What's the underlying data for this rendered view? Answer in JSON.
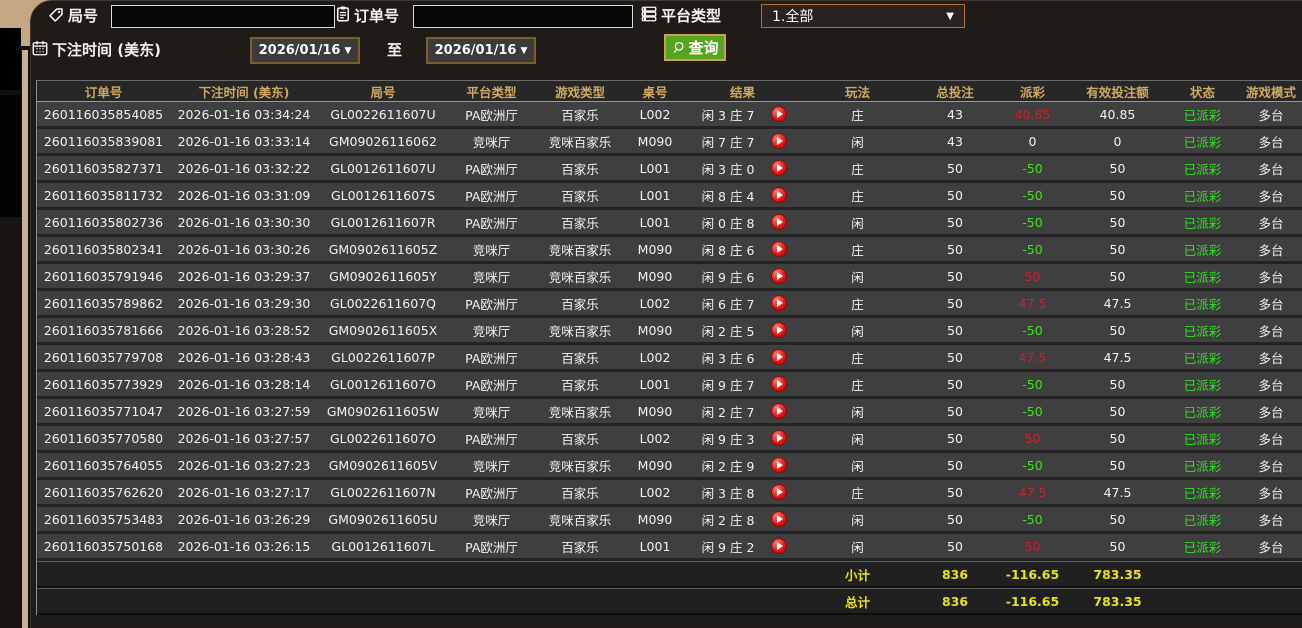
{
  "filters": {
    "game_no_label": "局号",
    "order_no_label": "订单号",
    "platform_label": "平台类型",
    "platform_value": "1.全部",
    "bet_time_label": "下注时间 (美东)",
    "date_from": "2026/01/16",
    "date_to": "2026/01/16",
    "to_label": "至",
    "query_label": "查询",
    "dropdown_arrow": "▼",
    "game_no_value": "",
    "order_no_value": ""
  },
  "icons": [
    "tag-icon",
    "clipboard-icon",
    "platform-list-icon",
    "calendar-icon",
    "search-icon",
    "replay-play-icon",
    "dropdown-arrow-icon"
  ],
  "colors": {
    "header_gold": "#cfa95f",
    "win_red": "#c82133",
    "lose_green": "#3fe41c",
    "status_green": "#2fe51f",
    "footer_yellow": "#eae313",
    "query_button_green": "#55a41e",
    "select_border_orange": "#b5722b",
    "date_border_brown": "#7d5c2d",
    "row_bg": "#3f3f3f",
    "panel_bg": "#1e1b18",
    "left_stripe_tan": "#c9b092"
  },
  "table": {
    "headers": [
      "订单号",
      "下注时间 (美东)",
      "局号",
      "平台类型",
      "游戏类型",
      "桌号",
      "结果",
      "玩法",
      "总投注",
      "派彩",
      "有效投注额",
      "状态",
      "游戏模式"
    ],
    "rows": [
      {
        "order": "260116035854085",
        "time": "2026-01-16 03:34:24",
        "game_no": "GL0022611607U",
        "platform": "PA欧洲厅",
        "game_type": "百家乐",
        "table_no": "L002",
        "result": "闲 3 庄 7",
        "play": "庄",
        "total_bet": "43",
        "payout": "40.85",
        "payout_color": "red",
        "valid_bet": "40.85",
        "status": "已派彩",
        "mode": "多台"
      },
      {
        "order": "260116035839081",
        "time": "2026-01-16 03:33:14",
        "game_no": "GM09026116062",
        "platform": "竞咪厅",
        "game_type": "竞咪百家乐",
        "table_no": "M090",
        "result": "闲 7 庄 7",
        "play": "闲",
        "total_bet": "43",
        "payout": "0",
        "payout_color": "white",
        "valid_bet": "0",
        "status": "已派彩",
        "mode": "多台"
      },
      {
        "order": "260116035827371",
        "time": "2026-01-16 03:32:22",
        "game_no": "GL0012611607U",
        "platform": "PA欧洲厅",
        "game_type": "百家乐",
        "table_no": "L001",
        "result": "闲 3 庄 0",
        "play": "庄",
        "total_bet": "50",
        "payout": "-50",
        "payout_color": "green",
        "valid_bet": "50",
        "status": "已派彩",
        "mode": "多台"
      },
      {
        "order": "260116035811732",
        "time": "2026-01-16 03:31:09",
        "game_no": "GL0012611607S",
        "platform": "PA欧洲厅",
        "game_type": "百家乐",
        "table_no": "L001",
        "result": "闲 8 庄 4",
        "play": "庄",
        "total_bet": "50",
        "payout": "-50",
        "payout_color": "green",
        "valid_bet": "50",
        "status": "已派彩",
        "mode": "多台"
      },
      {
        "order": "260116035802736",
        "time": "2026-01-16 03:30:30",
        "game_no": "GL0012611607R",
        "platform": "PA欧洲厅",
        "game_type": "百家乐",
        "table_no": "L001",
        "result": "闲 0 庄 8",
        "play": "闲",
        "total_bet": "50",
        "payout": "-50",
        "payout_color": "green",
        "valid_bet": "50",
        "status": "已派彩",
        "mode": "多台"
      },
      {
        "order": "260116035802341",
        "time": "2026-01-16 03:30:26",
        "game_no": "GM0902611605Z",
        "platform": "竞咪厅",
        "game_type": "竞咪百家乐",
        "table_no": "M090",
        "result": "闲 8 庄 6",
        "play": "庄",
        "total_bet": "50",
        "payout": "-50",
        "payout_color": "green",
        "valid_bet": "50",
        "status": "已派彩",
        "mode": "多台"
      },
      {
        "order": "260116035791946",
        "time": "2026-01-16 03:29:37",
        "game_no": "GM0902611605Y",
        "platform": "竞咪厅",
        "game_type": "竞咪百家乐",
        "table_no": "M090",
        "result": "闲 9 庄 6",
        "play": "闲",
        "total_bet": "50",
        "payout": "50",
        "payout_color": "red",
        "valid_bet": "50",
        "status": "已派彩",
        "mode": "多台"
      },
      {
        "order": "260116035789862",
        "time": "2026-01-16 03:29:30",
        "game_no": "GL0022611607Q",
        "platform": "PA欧洲厅",
        "game_type": "百家乐",
        "table_no": "L002",
        "result": "闲 6 庄 7",
        "play": "庄",
        "total_bet": "50",
        "payout": "47.5",
        "payout_color": "red",
        "valid_bet": "47.5",
        "status": "已派彩",
        "mode": "多台"
      },
      {
        "order": "260116035781666",
        "time": "2026-01-16 03:28:52",
        "game_no": "GM0902611605X",
        "platform": "竞咪厅",
        "game_type": "竞咪百家乐",
        "table_no": "M090",
        "result": "闲 2 庄 5",
        "play": "闲",
        "total_bet": "50",
        "payout": "-50",
        "payout_color": "green",
        "valid_bet": "50",
        "status": "已派彩",
        "mode": "多台"
      },
      {
        "order": "260116035779708",
        "time": "2026-01-16 03:28:43",
        "game_no": "GL0022611607P",
        "platform": "PA欧洲厅",
        "game_type": "百家乐",
        "table_no": "L002",
        "result": "闲 3 庄 6",
        "play": "庄",
        "total_bet": "50",
        "payout": "47.5",
        "payout_color": "red",
        "valid_bet": "47.5",
        "status": "已派彩",
        "mode": "多台"
      },
      {
        "order": "260116035773929",
        "time": "2026-01-16 03:28:14",
        "game_no": "GL0012611607O",
        "platform": "PA欧洲厅",
        "game_type": "百家乐",
        "table_no": "L001",
        "result": "闲 9 庄 7",
        "play": "庄",
        "total_bet": "50",
        "payout": "-50",
        "payout_color": "green",
        "valid_bet": "50",
        "status": "已派彩",
        "mode": "多台"
      },
      {
        "order": "260116035771047",
        "time": "2026-01-16 03:27:59",
        "game_no": "GM0902611605W",
        "platform": "竞咪厅",
        "game_type": "竞咪百家乐",
        "table_no": "M090",
        "result": "闲 2 庄 7",
        "play": "闲",
        "total_bet": "50",
        "payout": "-50",
        "payout_color": "green",
        "valid_bet": "50",
        "status": "已派彩",
        "mode": "多台"
      },
      {
        "order": "260116035770580",
        "time": "2026-01-16 03:27:57",
        "game_no": "GL0022611607O",
        "platform": "PA欧洲厅",
        "game_type": "百家乐",
        "table_no": "L002",
        "result": "闲 9 庄 3",
        "play": "闲",
        "total_bet": "50",
        "payout": "50",
        "payout_color": "red",
        "valid_bet": "50",
        "status": "已派彩",
        "mode": "多台"
      },
      {
        "order": "260116035764055",
        "time": "2026-01-16 03:27:23",
        "game_no": "GM0902611605V",
        "platform": "竞咪厅",
        "game_type": "竞咪百家乐",
        "table_no": "M090",
        "result": "闲 2 庄 9",
        "play": "闲",
        "total_bet": "50",
        "payout": "-50",
        "payout_color": "green",
        "valid_bet": "50",
        "status": "已派彩",
        "mode": "多台"
      },
      {
        "order": "260116035762620",
        "time": "2026-01-16 03:27:17",
        "game_no": "GL0022611607N",
        "platform": "PA欧洲厅",
        "game_type": "百家乐",
        "table_no": "L002",
        "result": "闲 3 庄 8",
        "play": "庄",
        "total_bet": "50",
        "payout": "47.5",
        "payout_color": "red",
        "valid_bet": "47.5",
        "status": "已派彩",
        "mode": "多台"
      },
      {
        "order": "260116035753483",
        "time": "2026-01-16 03:26:29",
        "game_no": "GM0902611605U",
        "platform": "竞咪厅",
        "game_type": "竞咪百家乐",
        "table_no": "M090",
        "result": "闲 2 庄 8",
        "play": "闲",
        "total_bet": "50",
        "payout": "-50",
        "payout_color": "green",
        "valid_bet": "50",
        "status": "已派彩",
        "mode": "多台"
      },
      {
        "order": "260116035750168",
        "time": "2026-01-16 03:26:15",
        "game_no": "GL0012611607L",
        "platform": "PA欧洲厅",
        "game_type": "百家乐",
        "table_no": "L001",
        "result": "闲 9 庄 2",
        "play": "闲",
        "total_bet": "50",
        "payout": "50",
        "payout_color": "red",
        "valid_bet": "50",
        "status": "已派彩",
        "mode": "多台"
      }
    ],
    "subtotal": {
      "label": "小计",
      "total_bet": "836",
      "payout": "-116.65",
      "valid_bet": "783.35"
    },
    "total": {
      "label": "总计",
      "total_bet": "836",
      "payout": "-116.65",
      "valid_bet": "783.35"
    }
  }
}
